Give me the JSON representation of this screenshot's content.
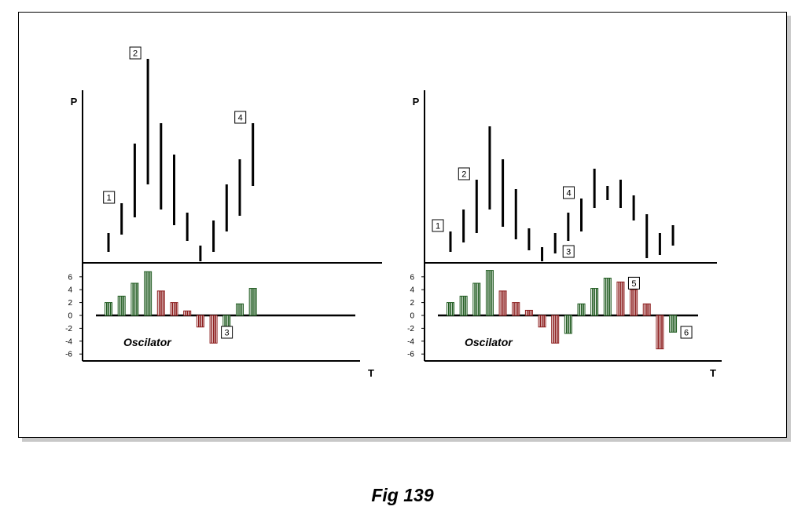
{
  "caption": "Fig 139",
  "colors": {
    "price_bar": "#000000",
    "osc_positive": "#1e5a1e",
    "osc_negative": "#8c1c1c"
  },
  "chart_data": [
    {
      "type": "bar",
      "panel": "left",
      "price_axis_label": "P",
      "time_axis_label": "T",
      "oscillator_label": "Oscilator",
      "oscillator_ylim": [
        -6,
        6
      ],
      "oscillator_ticks": [
        "6",
        "4",
        "2",
        "0",
        "-2",
        "-4",
        "-6"
      ],
      "price_bars": [
        {
          "low": 16,
          "high": 40
        },
        {
          "low": 38,
          "high": 78
        },
        {
          "low": 60,
          "high": 154
        },
        {
          "low": 102,
          "high": 262
        },
        {
          "low": 70,
          "high": 180
        },
        {
          "low": 50,
          "high": 140
        },
        {
          "low": 30,
          "high": 66
        },
        {
          "low": 4,
          "high": 24
        },
        {
          "low": 16,
          "high": 56
        },
        {
          "low": 42,
          "high": 102
        },
        {
          "low": 62,
          "high": 134
        },
        {
          "low": 100,
          "high": 180
        }
      ],
      "oscillator_values": [
        2,
        3,
        5,
        6.8,
        3.8,
        2,
        0.7,
        -1.8,
        -4.3,
        -2.8,
        1.8,
        4.2
      ],
      "price_markers": [
        {
          "label": "1",
          "bar": 1
        },
        {
          "label": "2",
          "bar": 3
        },
        {
          "label": "4",
          "bar": 11
        }
      ],
      "oscillator_markers": [
        {
          "label": "3",
          "bar": 8
        }
      ]
    },
    {
      "type": "bar",
      "panel": "right",
      "price_axis_label": "P",
      "time_axis_label": "T",
      "oscillator_label": "Oscilator",
      "oscillator_ylim": [
        -6,
        6
      ],
      "oscillator_ticks": [
        "6",
        "4",
        "2",
        "0",
        "-2",
        "-4",
        "-6"
      ],
      "price_bars": [
        {
          "low": 16,
          "high": 42
        },
        {
          "low": 28,
          "high": 70
        },
        {
          "low": 40,
          "high": 108
        },
        {
          "low": 70,
          "high": 176
        },
        {
          "low": 48,
          "high": 134
        },
        {
          "low": 32,
          "high": 96
        },
        {
          "low": 18,
          "high": 46
        },
        {
          "low": 4,
          "high": 22
        },
        {
          "low": 14,
          "high": 40
        },
        {
          "low": 30,
          "high": 66
        },
        {
          "low": 42,
          "high": 84
        },
        {
          "low": 72,
          "high": 122
        },
        {
          "low": 82,
          "high": 100
        },
        {
          "low": 72,
          "high": 108
        },
        {
          "low": 56,
          "high": 88
        },
        {
          "low": 8,
          "high": 64
        },
        {
          "low": 12,
          "high": 40
        },
        {
          "low": 24,
          "high": 50
        }
      ],
      "oscillator_values": [
        2,
        3,
        5,
        7,
        3.8,
        2,
        0.8,
        -1.8,
        -4.3,
        -2.8,
        1.8,
        4.2,
        5.8,
        5.2,
        4,
        1.8,
        -5.2,
        -2.6
      ],
      "price_markers": [
        {
          "label": "1",
          "bar": 0
        },
        {
          "label": "2",
          "bar": 2
        },
        {
          "label": "3",
          "bar": 8
        },
        {
          "label": "4",
          "bar": 10
        }
      ],
      "oscillator_markers": [
        {
          "label": "5",
          "bar": 13
        },
        {
          "label": "6",
          "bar": 17
        }
      ]
    }
  ]
}
